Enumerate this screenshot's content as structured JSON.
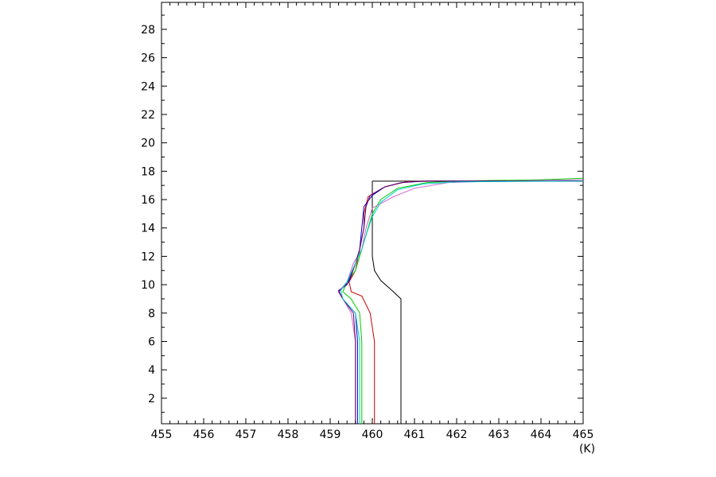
{
  "chart_data": {
    "type": "line",
    "xlabel": "(K)",
    "ylabel": "",
    "xlim": [
      455,
      465
    ],
    "ylim": [
      0.2,
      29.9
    ],
    "x_ticks": [
      455,
      456,
      457,
      458,
      459,
      460,
      461,
      462,
      463,
      464,
      465
    ],
    "y_ticks": [
      2,
      4,
      6,
      8,
      10,
      12,
      14,
      16,
      18,
      20,
      22,
      24,
      26,
      28
    ],
    "grid": false,
    "legend": "none",
    "series": [
      {
        "color": "#000000",
        "points": [
          [
            460.0,
            17.3
          ],
          [
            460.0,
            12.0
          ],
          [
            460.05,
            11.0
          ],
          [
            460.2,
            10.3
          ],
          [
            460.5,
            9.5
          ],
          [
            460.68,
            9.0
          ],
          [
            460.68,
            0.2
          ]
        ],
        "extra_segments": [
          [
            [
              460.0,
              17.3
            ],
            [
              465.0,
              17.3
            ]
          ]
        ]
      },
      {
        "color": "#cc0000",
        "points": [
          [
            460.05,
            0.2
          ],
          [
            460.05,
            6.0
          ],
          [
            459.95,
            8.0
          ],
          [
            459.75,
            9.2
          ],
          [
            459.5,
            9.5
          ],
          [
            459.45,
            10.2
          ],
          [
            459.6,
            11.0
          ],
          [
            459.7,
            12.5
          ],
          [
            459.8,
            14.0
          ],
          [
            459.8,
            15.0
          ],
          [
            459.9,
            16.2
          ],
          [
            460.3,
            16.9
          ],
          [
            460.8,
            17.25
          ],
          [
            461.5,
            17.3
          ],
          [
            465.0,
            17.3
          ]
        ]
      },
      {
        "color": "#00cc00",
        "points": [
          [
            459.75,
            0.2
          ],
          [
            459.75,
            6.0
          ],
          [
            459.7,
            8.0
          ],
          [
            459.5,
            9.0
          ],
          [
            459.3,
            9.5
          ],
          [
            459.4,
            10.2
          ],
          [
            459.6,
            11.0
          ],
          [
            459.75,
            12.5
          ],
          [
            459.9,
            14.0
          ],
          [
            460.0,
            15.0
          ],
          [
            460.2,
            16.0
          ],
          [
            460.6,
            16.8
          ],
          [
            461.3,
            17.2
          ],
          [
            462.0,
            17.3
          ],
          [
            464.0,
            17.4
          ],
          [
            465.0,
            17.5
          ]
        ]
      },
      {
        "color": "#0000cc",
        "points": [
          [
            459.65,
            0.2
          ],
          [
            459.65,
            6.0
          ],
          [
            459.6,
            8.0
          ],
          [
            459.3,
            9.0
          ],
          [
            459.2,
            9.6
          ],
          [
            459.4,
            10.0
          ],
          [
            459.6,
            11.5
          ],
          [
            459.7,
            12.5
          ],
          [
            459.75,
            14.0
          ],
          [
            459.8,
            15.5
          ],
          [
            460.0,
            16.3
          ],
          [
            460.3,
            16.9
          ],
          [
            460.7,
            17.2
          ],
          [
            461.3,
            17.3
          ],
          [
            465.0,
            17.3
          ]
        ]
      },
      {
        "color": "#cc66cc",
        "points": [
          [
            459.6,
            0.2
          ],
          [
            459.6,
            6.0
          ],
          [
            459.5,
            8.0
          ],
          [
            459.3,
            9.0
          ],
          [
            459.2,
            9.5
          ],
          [
            459.4,
            10.2
          ],
          [
            459.55,
            11.5
          ],
          [
            459.75,
            12.5
          ],
          [
            459.85,
            14.0
          ],
          [
            460.0,
            15.4
          ],
          [
            460.5,
            16.2
          ],
          [
            461.0,
            16.8
          ],
          [
            461.8,
            17.2
          ],
          [
            463.0,
            17.3
          ],
          [
            465.0,
            17.4
          ]
        ]
      },
      {
        "color": "#660066",
        "points": [
          [
            459.6,
            0.2
          ],
          [
            459.6,
            6.0
          ],
          [
            459.55,
            8.0
          ],
          [
            459.3,
            9.0
          ],
          [
            459.2,
            9.5
          ],
          [
            459.45,
            10.2
          ],
          [
            459.6,
            11.5
          ],
          [
            459.7,
            12.5
          ],
          [
            459.8,
            14.0
          ],
          [
            459.85,
            15.5
          ],
          [
            459.95,
            16.3
          ],
          [
            460.3,
            16.9
          ],
          [
            460.7,
            17.2
          ],
          [
            461.2,
            17.3
          ],
          [
            465.0,
            17.3
          ]
        ]
      },
      {
        "color": "#00cccc",
        "points": [
          [
            459.7,
            0.2
          ],
          [
            459.7,
            6.0
          ],
          [
            459.6,
            8.0
          ],
          [
            459.3,
            9.0
          ],
          [
            459.25,
            9.6
          ],
          [
            459.4,
            10.2
          ],
          [
            459.55,
            11.2
          ],
          [
            459.75,
            12.5
          ],
          [
            459.85,
            13.5
          ],
          [
            460.0,
            14.8
          ],
          [
            460.2,
            15.8
          ],
          [
            460.6,
            16.7
          ],
          [
            461.2,
            17.1
          ],
          [
            462.0,
            17.25
          ],
          [
            465.0,
            17.3
          ]
        ]
      }
    ]
  }
}
